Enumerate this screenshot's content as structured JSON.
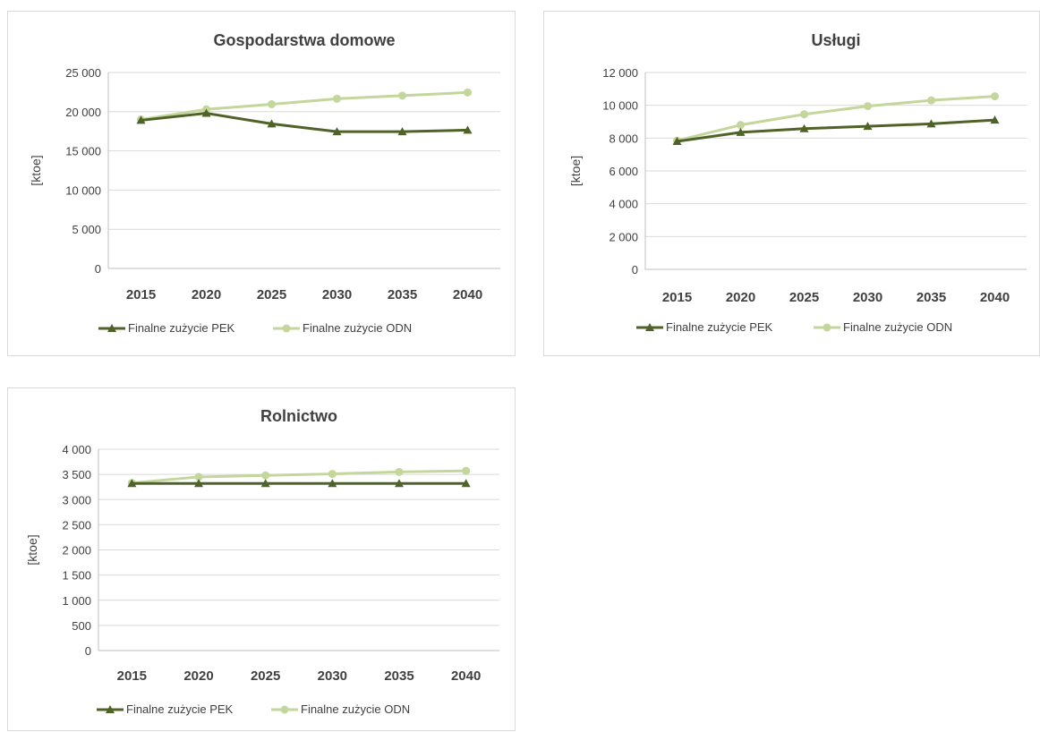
{
  "chart_data": [
    {
      "type": "line",
      "title": "Gospodarstwa domowe",
      "ylabel": "[ktoe]",
      "xlabel": "",
      "categories": [
        "2015",
        "2020",
        "2025",
        "2030",
        "2035",
        "2040"
      ],
      "ylim": [
        0,
        25000
      ],
      "yticks": [
        0,
        5000,
        10000,
        15000,
        20000,
        25000
      ],
      "ytick_labels": [
        "0",
        "5 000",
        "10 000",
        "15 000",
        "20 000",
        "25 000"
      ],
      "grid": true,
      "legend": "bottom",
      "series": [
        {
          "name": "Finalne zużycie PEK",
          "color": "#4f6228",
          "marker": "triangle",
          "values": [
            18900,
            19800,
            18450,
            17450,
            17450,
            17650
          ]
        },
        {
          "name": "Finalne zużycie ODN",
          "color": "#c3d69b",
          "marker": "circle",
          "values": [
            19000,
            20300,
            20950,
            21650,
            22050,
            22450
          ]
        }
      ]
    },
    {
      "type": "line",
      "title": "Usługi",
      "ylabel": "[ktoe]",
      "xlabel": "",
      "categories": [
        "2015",
        "2020",
        "2025",
        "2030",
        "2035",
        "2040"
      ],
      "ylim": [
        0,
        12000
      ],
      "yticks": [
        0,
        2000,
        4000,
        6000,
        8000,
        10000,
        12000
      ],
      "ytick_labels": [
        "0",
        "2 000",
        "4 000",
        "6 000",
        "8 000",
        "10 000",
        "12 000"
      ],
      "grid": true,
      "legend": "bottom",
      "series": [
        {
          "name": "Finalne zużycie PEK",
          "color": "#4f6228",
          "marker": "triangle",
          "values": [
            7800,
            8350,
            8580,
            8720,
            8870,
            9100
          ]
        },
        {
          "name": "Finalne zużycie ODN",
          "color": "#c3d69b",
          "marker": "circle",
          "values": [
            7850,
            8800,
            9450,
            9950,
            10300,
            10550
          ]
        }
      ]
    },
    {
      "type": "line",
      "title": "Rolnictwo",
      "ylabel": "[ktoe]",
      "xlabel": "",
      "categories": [
        "2015",
        "2020",
        "2025",
        "2030",
        "2035",
        "2040"
      ],
      "ylim": [
        0,
        4000
      ],
      "yticks": [
        0,
        500,
        1000,
        1500,
        2000,
        2500,
        3000,
        3500,
        4000
      ],
      "ytick_labels": [
        "0",
        "500",
        "1 000",
        "1 500",
        "2 000",
        "2 500",
        "3 000",
        "3 500",
        "4 000"
      ],
      "grid": true,
      "legend": "bottom",
      "series": [
        {
          "name": "Finalne zużycie PEK",
          "color": "#4f6228",
          "marker": "triangle",
          "values": [
            3320,
            3320,
            3320,
            3320,
            3320,
            3320
          ]
        },
        {
          "name": "Finalne zużycie ODN",
          "color": "#c3d69b",
          "marker": "circle",
          "values": [
            3330,
            3450,
            3480,
            3510,
            3550,
            3570
          ]
        }
      ]
    }
  ]
}
